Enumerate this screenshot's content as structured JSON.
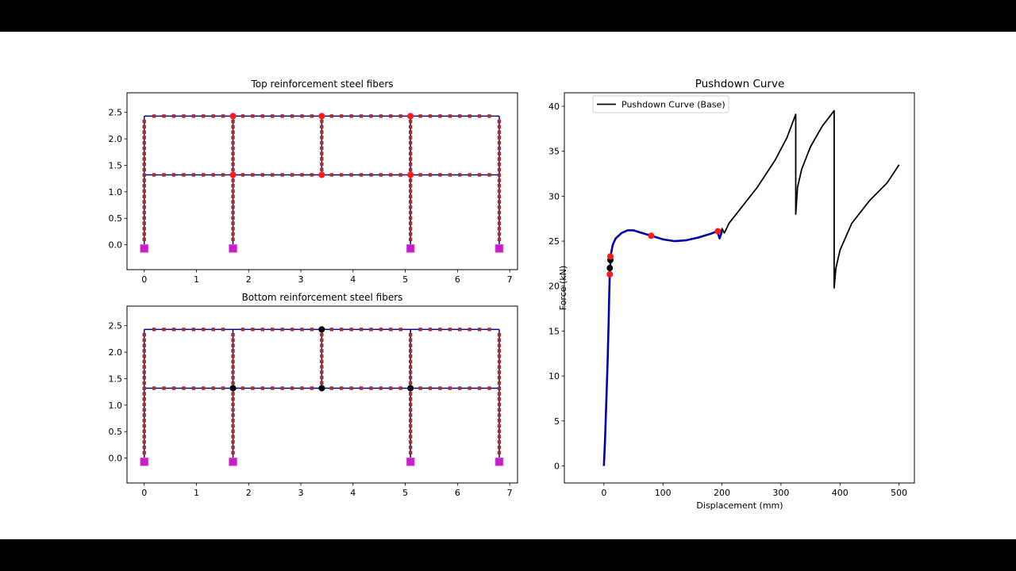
{
  "chart_data": [
    {
      "type": "scatter",
      "title": "Top reinforcement steel fibers",
      "xlabel": "",
      "ylabel": "",
      "xlim": [
        -0.33,
        7.15
      ],
      "ylim": [
        -0.47,
        2.87
      ],
      "xticks": [
        0,
        1,
        2,
        3,
        4,
        5,
        6,
        7
      ],
      "yticks": [
        0.0,
        0.5,
        1.0,
        1.5,
        2.0,
        2.5
      ],
      "ytick_labels": [
        "0.0",
        "0.5",
        "1.0",
        "1.5",
        "2.0",
        "2.5"
      ],
      "grid": false,
      "frame": {
        "nodes_x": [
          0,
          1.7,
          3.4,
          5.1,
          6.8
        ],
        "floor_y": [
          1.32,
          2.43
        ],
        "columns": [
          {
            "x": 0,
            "y0": 0,
            "y1": 2.43
          },
          {
            "x": 1.7,
            "y0": 0,
            "y1": 2.43
          },
          {
            "x": 3.4,
            "y0": 1.32,
            "y1": 2.43
          },
          {
            "x": 5.1,
            "y0": 0,
            "y1": 2.43
          },
          {
            "x": 6.8,
            "y0": 0,
            "y1": 2.43
          }
        ],
        "beams": [
          {
            "y": 1.32,
            "x0": 0,
            "x1": 6.8
          },
          {
            "y": 2.43,
            "x0": 0,
            "x1": 6.8
          }
        ],
        "supports": [
          {
            "x": 0,
            "y": -0.07
          },
          {
            "x": 1.7,
            "y": -0.07
          },
          {
            "x": 5.1,
            "y": -0.07
          },
          {
            "x": 6.8,
            "y": -0.07
          }
        ]
      },
      "series": [
        {
          "name": "Yielded fibers (red)",
          "color": "#ff1a1a",
          "points": [
            [
              1.7,
              2.43
            ],
            [
              3.4,
              2.43
            ],
            [
              5.1,
              2.43
            ],
            [
              1.7,
              1.32
            ],
            [
              3.4,
              1.32
            ],
            [
              5.1,
              1.32
            ]
          ]
        }
      ]
    },
    {
      "type": "scatter",
      "title": "Bottom reinforcement steel fibers",
      "xlabel": "",
      "ylabel": "",
      "xlim": [
        -0.33,
        7.15
      ],
      "ylim": [
        -0.47,
        2.87
      ],
      "xticks": [
        0,
        1,
        2,
        3,
        4,
        5,
        6,
        7
      ],
      "yticks": [
        0.0,
        0.5,
        1.0,
        1.5,
        2.0,
        2.5
      ],
      "ytick_labels": [
        "0.0",
        "0.5",
        "1.0",
        "1.5",
        "2.0",
        "2.5"
      ],
      "grid": false,
      "series": [
        {
          "name": "Yielded fibers (black)",
          "color": "#000000",
          "points": [
            [
              3.4,
              2.43
            ],
            [
              1.7,
              1.32
            ],
            [
              3.4,
              1.32
            ],
            [
              5.1,
              1.32
            ]
          ]
        }
      ]
    },
    {
      "type": "line",
      "title": "Pushdown Curve",
      "xlabel": "Displacement (mm)",
      "ylabel": "Force (kN)",
      "xlim": [
        -67,
        526
      ],
      "ylim": [
        -1.9,
        41.5
      ],
      "xticks": [
        0,
        100,
        200,
        300,
        400,
        500
      ],
      "yticks": [
        0,
        5,
        10,
        15,
        20,
        25,
        30,
        35,
        40
      ],
      "grid": false,
      "legend": {
        "position": "upper left",
        "entries": [
          "Pushdown Curve (Base)"
        ]
      },
      "series": [
        {
          "name": "Pushdown Curve (Base)",
          "color": "#000000",
          "x": [
            0,
            2,
            4,
            6,
            8,
            9,
            10,
            12,
            15,
            20,
            30,
            40,
            50,
            60,
            70,
            80,
            100,
            120,
            140,
            160,
            180,
            192,
            196,
            200,
            204,
            207,
            212,
            230,
            260,
            290,
            310,
            325,
            325,
            328,
            335,
            350,
            370,
            390,
            390,
            393,
            400,
            420,
            450,
            480,
            500
          ],
          "y": [
            0,
            3,
            7,
            11,
            16,
            19,
            21.5,
            23.6,
            24.6,
            25.3,
            25.9,
            26.2,
            26.2,
            26.0,
            25.8,
            25.6,
            25.2,
            25.0,
            25.1,
            25.4,
            25.8,
            26.1,
            25.3,
            26.4,
            25.9,
            26.3,
            27.0,
            28.5,
            31.0,
            34.0,
            36.5,
            39.1,
            28.0,
            31.0,
            33.0,
            35.5,
            37.8,
            39.5,
            19.8,
            22.0,
            24.0,
            27.0,
            29.5,
            31.5,
            33.5
          ]
        },
        {
          "name": "Overlay (blue)",
          "color": "#0000aa",
          "x": [
            0,
            2,
            4,
            6,
            8,
            9,
            10,
            12,
            15,
            20,
            30,
            40,
            50,
            60,
            70,
            80,
            100,
            120,
            140,
            160,
            180,
            192,
            196,
            200
          ],
          "y": [
            0,
            3,
            7,
            11,
            16,
            19,
            21.5,
            23.6,
            24.6,
            25.3,
            25.9,
            26.2,
            26.2,
            26.0,
            25.8,
            25.6,
            25.2,
            25.0,
            25.1,
            25.4,
            25.8,
            26.1,
            25.3,
            26.1
          ]
        }
      ],
      "markers": [
        {
          "x": 10,
          "y": 21.3,
          "color": "#ff1a1a"
        },
        {
          "x": 10,
          "y": 22.0,
          "color": "#000000"
        },
        {
          "x": 11,
          "y": 22.9,
          "color": "#000000"
        },
        {
          "x": 11,
          "y": 23.3,
          "color": "#ff1a1a"
        },
        {
          "x": 80,
          "y": 25.6,
          "color": "#ff1a1a"
        },
        {
          "x": 193,
          "y": 26.1,
          "color": "#ff1a1a"
        }
      ]
    }
  ],
  "colors": {
    "frame_line": "#00008b",
    "fiber_marker": "#a0322f",
    "support_marker": "#c81ec8",
    "red_marker": "#ff1a1a",
    "black_marker": "#000000"
  }
}
